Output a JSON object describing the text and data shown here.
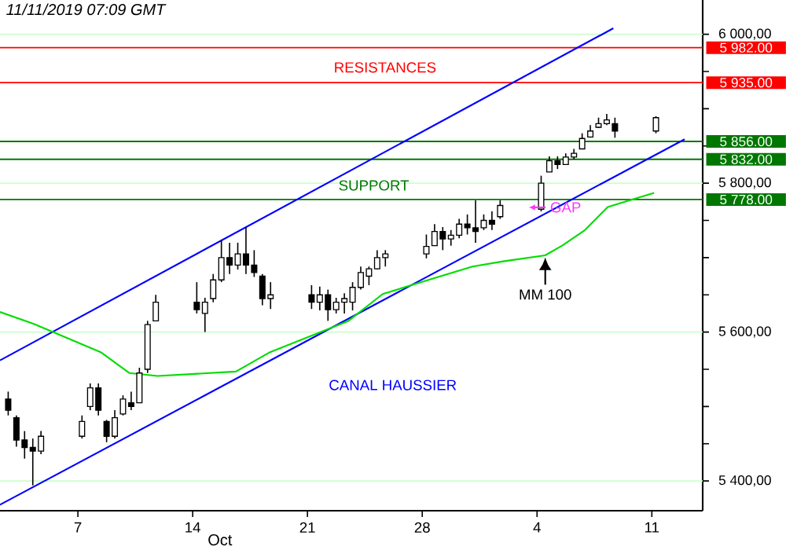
{
  "chart_data": {
    "type": "candlestick",
    "title": "11/11/2019 07:09 GMT",
    "xlabel": "Oct",
    "color": "#000000",
    "x": [
      "2019-10-02T18:00",
      "2019-10-03T06:00",
      "2019-10-03T18:00",
      "2019-10-04T06:00",
      "2019-10-04T18:00",
      "2019-10-07T06:00",
      "2019-10-07T18:00",
      "2019-10-08T06:00",
      "2019-10-08T18:00",
      "2019-10-09T06:00",
      "2019-10-09T18:00",
      "2019-10-10T06:00",
      "2019-10-10T18:00",
      "2019-10-11T06:00",
      "2019-10-11T18:00",
      "2019-10-14T06:00",
      "2019-10-14T18:00",
      "2019-10-15T06:00",
      "2019-10-15T18:00",
      "2019-10-16T06:00",
      "2019-10-16T18:00",
      "2019-10-17T06:00",
      "2019-10-17T18:00",
      "2019-10-18T06:00",
      "2019-10-18T18:00",
      "2019-10-21T06:00",
      "2019-10-21T18:00",
      "2019-10-22T06:00",
      "2019-10-22T18:00",
      "2019-10-23T06:00",
      "2019-10-23T18:00",
      "2019-10-24T06:00",
      "2019-10-24T18:00",
      "2019-10-25T06:00",
      "2019-10-25T18:00",
      "2019-10-28T06:00",
      "2019-10-28T18:00",
      "2019-10-29T06:00",
      "2019-10-29T18:00",
      "2019-10-30T06:00",
      "2019-10-30T18:00",
      "2019-10-31T06:00",
      "2019-10-31T18:00",
      "2019-11-01T06:00",
      "2019-11-01T18:00",
      "2019-11-04T06:00",
      "2019-11-04T18:00",
      "2019-11-05T06:00",
      "2019-11-05T18:00",
      "2019-11-06T06:00",
      "2019-11-06T18:00",
      "2019-11-07T06:00",
      "2019-11-07T18:00",
      "2019-11-08T06:00",
      "2019-11-08T18:00",
      "2019-11-11T06:00"
    ],
    "ohlc": [
      [
        5510,
        5520,
        5488,
        5495
      ],
      [
        5485,
        5488,
        5446,
        5455
      ],
      [
        5455,
        5467,
        5430,
        5445
      ],
      [
        5445,
        5457,
        5394,
        5440
      ],
      [
        5440,
        5467,
        5436,
        5460
      ],
      [
        5460,
        5488,
        5457,
        5480
      ],
      [
        5500,
        5531,
        5495,
        5525
      ],
      [
        5525,
        5531,
        5488,
        5495
      ],
      [
        5480,
        5482,
        5452,
        5460
      ],
      [
        5460,
        5495,
        5457,
        5485
      ],
      [
        5490,
        5515,
        5488,
        5510
      ],
      [
        5505,
        5520,
        5495,
        5500
      ],
      [
        5505,
        5552,
        5505,
        5545
      ],
      [
        5550,
        5615,
        5545,
        5610
      ],
      [
        5615,
        5650,
        5615,
        5640
      ],
      [
        5640,
        5667,
        5625,
        5630
      ],
      [
        5625,
        5646,
        5600,
        5640
      ],
      [
        5645,
        5678,
        5640,
        5670
      ],
      [
        5670,
        5724,
        5667,
        5700
      ],
      [
        5700,
        5720,
        5678,
        5690
      ],
      [
        5690,
        5720,
        5684,
        5705
      ],
      [
        5705,
        5741,
        5678,
        5690
      ],
      [
        5690,
        5710,
        5674,
        5680
      ],
      [
        5675,
        5678,
        5636,
        5645
      ],
      [
        5645,
        5667,
        5631,
        5650
      ],
      [
        5650,
        5663,
        5631,
        5640
      ],
      [
        5640,
        5661,
        5629,
        5650
      ],
      [
        5650,
        5657,
        5615,
        5630
      ],
      [
        5630,
        5646,
        5625,
        5640
      ],
      [
        5640,
        5652,
        5625,
        5645
      ],
      [
        5640,
        5667,
        5629,
        5660
      ],
      [
        5660,
        5688,
        5657,
        5680
      ],
      [
        5675,
        5688,
        5663,
        5685
      ],
      [
        5685,
        5710,
        5684,
        5700
      ],
      [
        5700,
        5710,
        5688,
        5705
      ],
      [
        5705,
        5731,
        5699,
        5715
      ],
      [
        5716,
        5745,
        5716,
        5735
      ],
      [
        5735,
        5741,
        5710,
        5725
      ],
      [
        5725,
        5737,
        5716,
        5730
      ],
      [
        5730,
        5752,
        5726,
        5745
      ],
      [
        5745,
        5758,
        5731,
        5740
      ],
      [
        5740,
        5777,
        5720,
        5735
      ],
      [
        5740,
        5758,
        5737,
        5750
      ],
      [
        5750,
        5762,
        5737,
        5745
      ],
      [
        5755,
        5777,
        5752,
        5770
      ],
      [
        5765,
        5810,
        5762,
        5800
      ],
      [
        5815,
        5836,
        5815,
        5830
      ],
      [
        5830,
        5836,
        5819,
        5825
      ],
      [
        5825,
        5840,
        5825,
        5835
      ],
      [
        5835,
        5846,
        5832,
        5840
      ],
      [
        5846,
        5867,
        5846,
        5860
      ],
      [
        5862,
        5878,
        5861,
        5870
      ],
      [
        5875,
        5888,
        5874,
        5880
      ],
      [
        5880,
        5893,
        5878,
        5885
      ],
      [
        5880,
        5888,
        5861,
        5870
      ],
      [
        5870,
        5890,
        5867,
        5888
      ]
    ],
    "series": [
      {
        "type": "line",
        "x": [
          "2019-10-02T06:00",
          "2019-11-08T15:36"
        ],
        "values": [
          5562,
          6008
        ],
        "color": "#0000ff"
      },
      {
        "type": "line",
        "x": [
          "2019-10-02T06:00",
          "2019-11-13T00:00"
        ],
        "values": [
          5368,
          5859
        ],
        "color": "#0000ff"
      },
      {
        "type": "line",
        "x": [
          "2019-10-02T06:00",
          "2019-10-04T07:30",
          "2019-10-08T09:20",
          "2019-10-10T03:10",
          "2019-10-11T20:40",
          "2019-10-16T15:20",
          "2019-10-18T17:15",
          "2019-10-23T12:00",
          "2019-10-25T14:00",
          "2019-10-28T23:15",
          "2019-10-31T01:25",
          "2019-11-01T22:20",
          "2019-11-04T11:45",
          "2019-11-05T12:45",
          "2019-11-06T22:05",
          "2019-11-08T07:25",
          "2019-11-11T03:20"
        ],
        "values": [
          5627,
          5611,
          5573,
          5545,
          5541,
          5547,
          5573,
          5615,
          5651,
          5674,
          5688,
          5695,
          5703,
          5716,
          5737,
          5768,
          5787
        ],
        "color": "#00dd00"
      }
    ],
    "xlim": [
      "2019-10-02T06:00",
      "2019-11-14T02:25"
    ],
    "xticks": [
      {
        "value": "2019-10-07",
        "label": "7"
      },
      {
        "value": "2019-10-14",
        "label": "14"
      },
      {
        "value": "2019-10-21",
        "label": "21"
      },
      {
        "value": "2019-10-28",
        "label": "28"
      },
      {
        "value": "2019-11-04",
        "label": "4"
      },
      {
        "value": "2019-11-11",
        "label": "11"
      }
    ],
    "ylim": [
      5360,
      6046
    ],
    "yticks": [
      {
        "value": 5400,
        "label": "5 400,00"
      },
      {
        "value": 5450,
        "label": null
      },
      {
        "value": 5500,
        "label": null
      },
      {
        "value": 5550,
        "label": null
      },
      {
        "value": 5600,
        "label": "5 600,00"
      },
      {
        "value": 5650,
        "label": null
      },
      {
        "value": 5700,
        "label": null
      },
      {
        "value": 5750,
        "label": null
      },
      {
        "value": 5800,
        "label": "5 800,00"
      },
      {
        "value": 5850,
        "label": null
      },
      {
        "value": 5900,
        "label": null
      },
      {
        "value": 5950,
        "label": null
      },
      {
        "value": 6000,
        "label": "6 000,00"
      }
    ],
    "grid": "y",
    "ref_lines": [
      {
        "axis": "y",
        "value": 5982,
        "label": "5 982.00",
        "color": "#ff0000"
      },
      {
        "axis": "y",
        "value": 5935,
        "label": "5 935.00",
        "color": "#ff0000"
      },
      {
        "axis": "y",
        "value": 5856,
        "label": "5 856.00",
        "color": "#007700"
      },
      {
        "axis": "y",
        "value": 5832,
        "label": "5 832.00",
        "color": "#007700"
      },
      {
        "axis": "y",
        "value": 5778,
        "label": "5 778.00",
        "color": "#007700"
      }
    ],
    "annotations": [
      "RESISTANCES",
      "SUPPORT",
      "CANAL HAUSSIER",
      {
        "text": "MM 100",
        "x": "2019-11-04T12:00",
        "y": 5703
      },
      "GAP"
    ]
  }
}
